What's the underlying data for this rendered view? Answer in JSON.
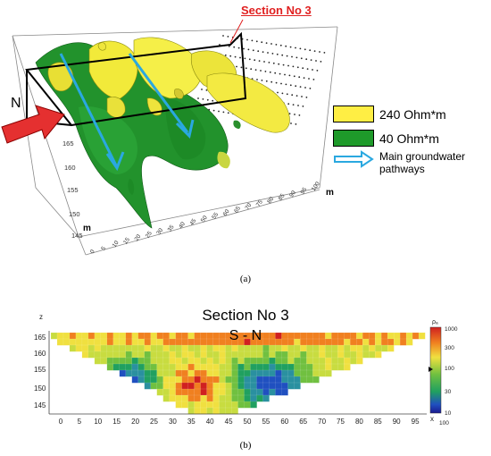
{
  "panel_a": {
    "section_label": "Section No 3",
    "north_label": "N",
    "axis_unit": "m",
    "z_ticks": [
      "165",
      "160",
      "155",
      "150",
      "145"
    ],
    "x_ticks": [
      "0",
      "5",
      "10",
      "15",
      "20",
      "25",
      "30",
      "35",
      "40",
      "45",
      "50",
      "55",
      "60",
      "65",
      "70",
      "75",
      "80",
      "85",
      "90",
      "95",
      "100"
    ],
    "legend": [
      {
        "label": "240 Ohm*m",
        "color": "#ffee44"
      },
      {
        "label": "40 Ohm*m",
        "color": "#1e9a2a"
      },
      {
        "label_line1": "Main groundwater",
        "label_line2": "pathways",
        "color": "#2aa8e0"
      }
    ],
    "caption": "(a)"
  },
  "panel_b": {
    "title": "Section No 3",
    "subtitle": "S - N",
    "z_label": "z",
    "x_label": "x",
    "colorbar_label": "ρₐ",
    "z_ticks": [
      "165",
      "160",
      "155",
      "150",
      "145"
    ],
    "x_ticks": [
      "0",
      "5",
      "10",
      "15",
      "20",
      "25",
      "30",
      "35",
      "40",
      "45",
      "50",
      "55",
      "60",
      "65",
      "70",
      "75",
      "80",
      "85",
      "90",
      "95"
    ],
    "colorbar_ticks": [
      "1000",
      "300",
      "100",
      "30",
      "10"
    ],
    "colorbar_bottom": "100",
    "caption": "(b)"
  }
}
